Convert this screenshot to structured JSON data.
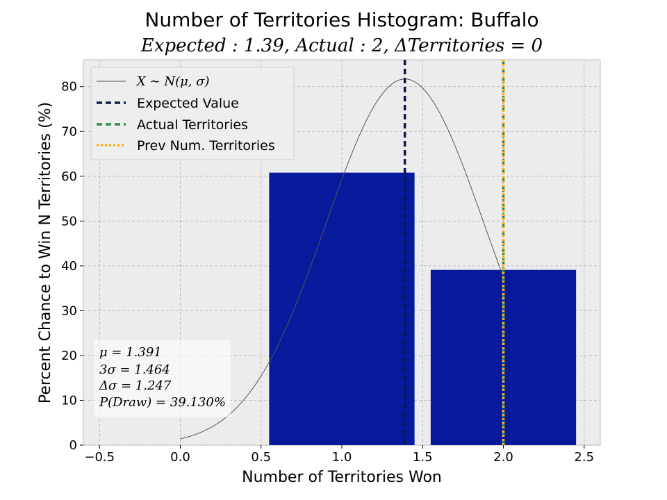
{
  "chart_data": {
    "type": "bar",
    "title": "Number of Territories Histogram: Buffalo",
    "subtitle": "Expected : 1.39, Actual : 2, ΔTerritories = 0",
    "xlabel": "Number of Territories Won",
    "ylabel": "Percent Chance to Win N Territories (%)",
    "xlim": [
      -0.6,
      2.6
    ],
    "ylim": [
      0,
      86
    ],
    "xticks": [
      -0.5,
      0.0,
      0.5,
      1.0,
      1.5,
      2.0,
      2.5
    ],
    "xtick_labels": [
      "−0.5",
      "0.0",
      "0.5",
      "1.0",
      "1.5",
      "2.0",
      "2.5"
    ],
    "yticks": [
      0,
      10,
      20,
      30,
      40,
      50,
      60,
      70,
      80
    ],
    "ytick_labels": [
      "0",
      "10",
      "20",
      "30",
      "40",
      "50",
      "60",
      "70",
      "80"
    ],
    "grid": true,
    "bars": [
      {
        "x": 1,
        "value": 60.8,
        "width": 0.9
      },
      {
        "x": 2,
        "value": 39.1,
        "width": 0.9
      }
    ],
    "normal_curve": {
      "mu": 1.391,
      "sigma": 0.488,
      "peak": 81.7
    },
    "vlines": [
      {
        "x": 1.39,
        "label": "Expected Value",
        "color": "#0a1a4a",
        "style": "dashed"
      },
      {
        "x": 2.0,
        "label": "Actual Territories",
        "color": "#2e8b45",
        "style": "dashed"
      },
      {
        "x": 2.0,
        "label": "Prev Num. Territories",
        "color": "#ffae1a",
        "style": "dotted"
      }
    ],
    "legend": {
      "placement": "upper-left",
      "entries": [
        {
          "label": "X ∼ N(μ, σ)",
          "style": "curve"
        },
        {
          "label": "Expected Value",
          "style": "dashed-navy"
        },
        {
          "label": "Actual Territories",
          "style": "dashed-green"
        },
        {
          "label": "Prev Num. Territories",
          "style": "dotted-orange"
        }
      ]
    },
    "stats": [
      "μ = 1.391",
      "3σ = 1.464",
      "Δσ = 1.247",
      "P(Draw) = 39.130%"
    ],
    "colors": {
      "bar": "#071a9c",
      "curve": "#555555",
      "plot_bg": "#ececec",
      "grid": "#b0b0b0"
    }
  }
}
